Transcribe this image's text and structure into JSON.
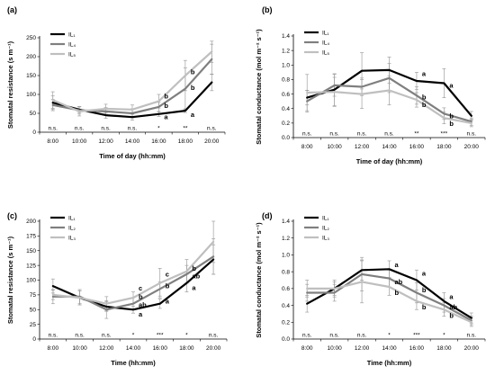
{
  "chart_data": [
    {
      "type": "line",
      "panel_label": "(a)",
      "xlabel": "Time of day (hh:mm)",
      "ylabel": "Stomatal resistance (s m⁻¹)",
      "ylim": [
        0,
        250
      ],
      "yticks": [
        0,
        50,
        100,
        150,
        200,
        250
      ],
      "categories": [
        "8:00",
        "10:00",
        "12:00",
        "14:00",
        "16:00",
        "18:00",
        "20:00"
      ],
      "legend_position": "top-left",
      "series": [
        {
          "name": "IL₁",
          "color": "#000000",
          "values": [
            78,
            60,
            45,
            40,
            48,
            57,
            132
          ],
          "errors": [
            18,
            8,
            8,
            8,
            6,
            5,
            22
          ]
        },
        {
          "name": "IL₄",
          "color": "#7f7f7f",
          "values": [
            72,
            58,
            55,
            50,
            67,
            115,
            193
          ],
          "errors": [
            15,
            10,
            10,
            12,
            12,
            55,
            40
          ]
        },
        {
          "name": "IL₅",
          "color": "#bfbfbf",
          "values": [
            85,
            55,
            62,
            60,
            82,
            150,
            213
          ],
          "errors": [
            22,
            12,
            12,
            12,
            18,
            40,
            28
          ]
        }
      ],
      "significance": [
        "n.s.",
        "n.s.",
        "n.s.",
        "n.s.",
        "*",
        "**",
        "n.s."
      ],
      "letters": [
        {
          "text": "b",
          "x_index": 4,
          "y": 95
        },
        {
          "text": "b",
          "x_index": 4,
          "y": 70
        },
        {
          "text": "a",
          "x_index": 4,
          "y": 40
        },
        {
          "text": "b",
          "x_index": 5,
          "y": 160
        },
        {
          "text": "b",
          "x_index": 5,
          "y": 118
        },
        {
          "text": "a",
          "x_index": 5,
          "y": 47
        }
      ]
    },
    {
      "type": "line",
      "panel_label": "(b)",
      "xlabel": "Time of day (hh:mm)",
      "ylabel": "Stomatal conductance (mol m⁻² s⁻¹)",
      "ylim": [
        0,
        1.4
      ],
      "yticks": [
        0,
        0.2,
        0.4,
        0.6,
        0.8,
        1.0,
        1.2,
        1.4
      ],
      "categories": [
        "8:00",
        "10:00",
        "12:00",
        "14:00",
        "16:00",
        "18:00",
        "20:00"
      ],
      "legend_position": "top-left",
      "series": [
        {
          "name": "IL₁",
          "color": "#000000",
          "values": [
            0.55,
            0.66,
            0.92,
            0.93,
            0.78,
            0.75,
            0.3
          ],
          "errors": [
            0.1,
            0.22,
            0.25,
            0.18,
            0.12,
            0.2,
            0.06
          ]
        },
        {
          "name": "IL₄",
          "color": "#7f7f7f",
          "values": [
            0.5,
            0.72,
            0.7,
            0.82,
            0.58,
            0.33,
            0.22
          ],
          "errors": [
            0.15,
            0.15,
            0.12,
            0.2,
            0.12,
            0.08,
            0.05
          ]
        },
        {
          "name": "IL₅",
          "color": "#bfbfbf",
          "values": [
            0.62,
            0.63,
            0.6,
            0.65,
            0.52,
            0.27,
            0.2
          ],
          "errors": [
            0.25,
            0.2,
            0.2,
            0.2,
            0.1,
            0.08,
            0.05
          ]
        }
      ],
      "significance": [
        "n.s.",
        "n.s.",
        "n.s.",
        "n.s.",
        "**",
        "***",
        "n.s."
      ],
      "letters": [
        {
          "text": "a",
          "x_index": 4,
          "y": 0.88
        },
        {
          "text": "b",
          "x_index": 4,
          "y": 0.56
        },
        {
          "text": "b",
          "x_index": 4,
          "y": 0.45
        },
        {
          "text": "a",
          "x_index": 5,
          "y": 0.72
        },
        {
          "text": "b",
          "x_index": 5,
          "y": 0.3
        },
        {
          "text": "b",
          "x_index": 5,
          "y": 0.19
        }
      ]
    },
    {
      "type": "line",
      "panel_label": "(c)",
      "xlabel": "Time (hh:mm)",
      "ylabel": "Stomatal resistance (s m⁻¹)",
      "ylim": [
        0,
        200
      ],
      "yticks": [
        0,
        25,
        50,
        75,
        100,
        125,
        150,
        175,
        200
      ],
      "categories": [
        "8:00",
        "10:00",
        "12:00",
        "14:00",
        "16:00",
        "18:00",
        "20:00"
      ],
      "legend_position": "top-left",
      "series": [
        {
          "name": "IL₁",
          "color": "#000000",
          "values": [
            90,
            70,
            55,
            50,
            60,
            95,
            135
          ],
          "errors": [
            12,
            12,
            8,
            6,
            8,
            15,
            25
          ]
        },
        {
          "name": "IL₂",
          "color": "#7f7f7f",
          "values": [
            72,
            72,
            50,
            60,
            85,
            110,
            140
          ],
          "errors": [
            12,
            12,
            15,
            10,
            12,
            15,
            30
          ]
        },
        {
          "name": "IL₃",
          "color": "#bfbfbf",
          "values": [
            75,
            70,
            60,
            70,
            95,
            115,
            165
          ],
          "errors": [
            8,
            12,
            12,
            10,
            25,
            20,
            35
          ]
        }
      ],
      "significance": [
        "n.s.",
        "n.s.",
        "n.s.",
        "*",
        "***",
        "*",
        "n.s."
      ],
      "letters": [
        {
          "text": "c",
          "x_index": 3,
          "y": 86
        },
        {
          "text": "b",
          "x_index": 3,
          "y": 72
        },
        {
          "text": "ab",
          "x_index": 3,
          "y": 58
        },
        {
          "text": "a",
          "x_index": 3,
          "y": 42
        },
        {
          "text": "c",
          "x_index": 4,
          "y": 110
        },
        {
          "text": "b",
          "x_index": 4,
          "y": 90
        },
        {
          "text": "a",
          "x_index": 4,
          "y": 64
        },
        {
          "text": "b",
          "x_index": 5,
          "y": 120
        },
        {
          "text": "ab",
          "x_index": 5,
          "y": 107
        },
        {
          "text": "a",
          "x_index": 5,
          "y": 87
        }
      ]
    },
    {
      "type": "line",
      "panel_label": "(d)",
      "xlabel": "Time (hh:mm)",
      "ylabel": "Stomatal conductance (mol m⁻² s⁻¹)",
      "ylim": [
        0,
        1.4
      ],
      "yticks": [
        0,
        0.2,
        0.4,
        0.6,
        0.8,
        1.0,
        1.2,
        1.4
      ],
      "categories": [
        "8:00",
        "10:00",
        "12:00",
        "14:00",
        "16:00",
        "18:00",
        "20:00"
      ],
      "legend_position": "top-left",
      "series": [
        {
          "name": "IL₁",
          "color": "#000000",
          "values": [
            0.42,
            0.6,
            0.82,
            0.83,
            0.7,
            0.45,
            0.25
          ],
          "errors": [
            0.1,
            0.08,
            0.12,
            0.1,
            0.12,
            0.1,
            0.06
          ]
        },
        {
          "name": "IL₂",
          "color": "#7f7f7f",
          "values": [
            0.55,
            0.55,
            0.77,
            0.72,
            0.55,
            0.4,
            0.22
          ],
          "errors": [
            0.1,
            0.1,
            0.2,
            0.1,
            0.12,
            0.08,
            0.05
          ]
        },
        {
          "name": "IL₃",
          "color": "#bfbfbf",
          "values": [
            0.6,
            0.6,
            0.68,
            0.62,
            0.45,
            0.35,
            0.2
          ],
          "errors": [
            0.1,
            0.1,
            0.25,
            0.1,
            0.1,
            0.08,
            0.05
          ]
        }
      ],
      "significance": [
        "n.s.",
        "n.s.",
        "n.s.",
        "*",
        "***",
        "*",
        "n.s."
      ],
      "letters": [
        {
          "text": "a",
          "x_index": 3,
          "y": 0.88
        },
        {
          "text": "ab",
          "x_index": 3,
          "y": 0.68
        },
        {
          "text": "b",
          "x_index": 3,
          "y": 0.55
        },
        {
          "text": "a",
          "x_index": 4,
          "y": 0.78
        },
        {
          "text": "b",
          "x_index": 4,
          "y": 0.58
        },
        {
          "text": "b",
          "x_index": 4,
          "y": 0.38
        },
        {
          "text": "a",
          "x_index": 5,
          "y": 0.5
        },
        {
          "text": "ab",
          "x_index": 5,
          "y": 0.38
        },
        {
          "text": "b",
          "x_index": 5,
          "y": 0.28
        }
      ]
    }
  ]
}
